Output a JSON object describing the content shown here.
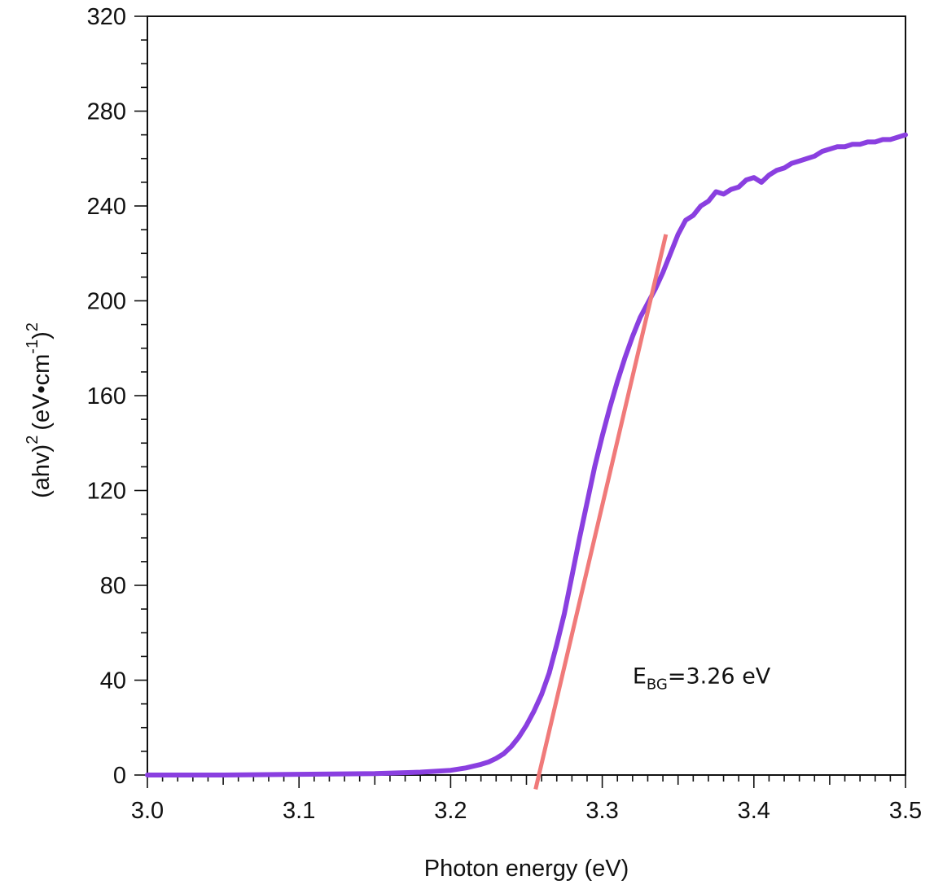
{
  "chart_data": {
    "type": "line",
    "title": "",
    "xlabel": "Photon energy (eV)",
    "ylabel": {
      "base": "(ahv)",
      "sup1": "2",
      "unit": "(eV•cm",
      "sup2": "-1",
      "close": ")",
      "sup3": "2"
    },
    "xlim": [
      3.0,
      3.5
    ],
    "ylim": [
      0,
      320
    ],
    "x_ticks": [
      3.0,
      3.1,
      3.2,
      3.3,
      3.4,
      3.5
    ],
    "x_tick_labels": [
      "3.0",
      "3.1",
      "3.2",
      "3.3",
      "3.4",
      "3.5"
    ],
    "y_ticks": [
      0,
      40,
      80,
      120,
      160,
      200,
      240,
      280,
      320
    ],
    "y_tick_labels": [
      "0",
      "40",
      "80",
      "120",
      "160",
      "200",
      "240",
      "280",
      "320"
    ],
    "grid": false,
    "series": [
      {
        "color": "#8a3fe0",
        "x": [
          3.0,
          3.05,
          3.1,
          3.15,
          3.18,
          3.2,
          3.21,
          3.22,
          3.225,
          3.23,
          3.235,
          3.24,
          3.245,
          3.25,
          3.255,
          3.26,
          3.265,
          3.27,
          3.275,
          3.28,
          3.285,
          3.29,
          3.295,
          3.3,
          3.305,
          3.31,
          3.315,
          3.32,
          3.325,
          3.33,
          3.335,
          3.34,
          3.345,
          3.35,
          3.355,
          3.36,
          3.365,
          3.37,
          3.375,
          3.38,
          3.385,
          3.39,
          3.395,
          3.4,
          3.405,
          3.41,
          3.415,
          3.42,
          3.425,
          3.43,
          3.435,
          3.44,
          3.445,
          3.45,
          3.455,
          3.46,
          3.465,
          3.47,
          3.475,
          3.48,
          3.485,
          3.49,
          3.495,
          3.5
        ],
        "values": [
          0,
          0,
          0.3,
          0.6,
          1.2,
          2,
          3,
          4.5,
          5.5,
          7,
          9,
          12,
          16,
          21,
          27,
          34,
          43,
          55,
          68,
          84,
          100,
          115,
          130,
          143,
          155,
          166,
          176,
          185,
          193,
          199,
          205,
          212,
          220,
          228,
          234,
          236,
          240,
          242,
          246,
          245,
          247,
          248,
          251,
          252,
          250,
          253,
          255,
          256,
          258,
          259,
          260,
          261,
          263,
          264,
          265,
          265,
          266,
          266,
          267,
          267,
          268,
          268,
          269,
          270
        ]
      },
      {
        "color": "#f07a7a",
        "x": [
          3.256,
          3.342
        ],
        "values": [
          -6,
          228
        ]
      }
    ],
    "annotations": [
      {
        "prefix": "E",
        "subscript": "BG",
        "suffix": "=3.26 eV",
        "x": 3.32,
        "y": 42
      }
    ]
  }
}
